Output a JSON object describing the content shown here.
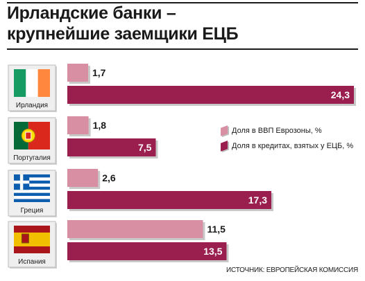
{
  "header": {
    "title_line1": "Ирландские банки –",
    "title_line2": "крупнейшие заемщики ЕЦБ"
  },
  "legend": {
    "items": [
      {
        "label": "Доля в ВВП Еврозоны, %",
        "color": "#d98fa3"
      },
      {
        "label": "Доля в кредитах, взятых у ЕЦБ, %",
        "color": "#9b1f4e"
      }
    ]
  },
  "source": "ИСТОЧНИК: ЕВРОПЕЙСКАЯ КОМИССИЯ",
  "colors": {
    "light_bar": "#d98fa3",
    "dark_bar": "#9b1f4e",
    "shadow": "#c8c8c8",
    "label_dark_text": "#1a1a1a",
    "label_light_text": "#ffffff"
  },
  "chart_data": {
    "type": "bar",
    "orientation": "horizontal",
    "categories": [
      "Ирландия",
      "Португалия",
      "Греция",
      "Испания"
    ],
    "series": [
      {
        "name": "Доля в ВВП Еврозоны, %",
        "values": [
          1.7,
          1.8,
          2.6,
          11.5
        ],
        "labels": [
          "1,7",
          "1,8",
          "2,6",
          "11,5"
        ]
      },
      {
        "name": "Доля в кредитах, взятых у ЕЦБ, %",
        "values": [
          24.3,
          7.5,
          17.3,
          13.5
        ],
        "labels": [
          "24,3",
          "7,5",
          "17,3",
          "13,5"
        ]
      }
    ],
    "xlim": [
      0,
      24.3
    ]
  }
}
